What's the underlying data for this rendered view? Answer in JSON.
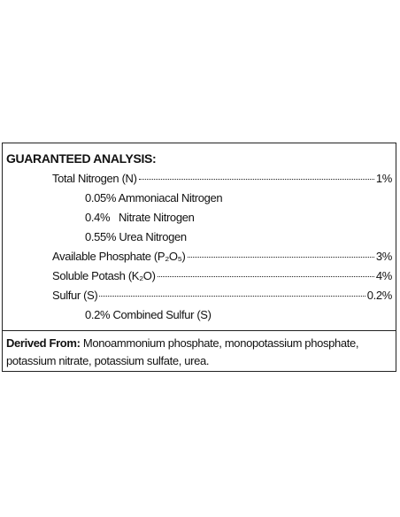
{
  "title": "GUARANTEED ANALYSIS:",
  "rows": [
    {
      "label": "Total Nitrogen (N)",
      "value": "1%"
    },
    {
      "label": "0.05% Ammoniacal Nitrogen"
    },
    {
      "label": "0.4%   Nitrate Nitrogen"
    },
    {
      "label": "0.55% Urea Nitrogen"
    },
    {
      "label": "Available Phosphate (P₂O₅)",
      "value": "3%"
    },
    {
      "label": "Soluble Potash (K₂O)",
      "value": "4%"
    },
    {
      "label": "Sulfur (S)",
      "value": "0.2%"
    },
    {
      "label": "0.2% Combined Sulfur (S)"
    }
  ],
  "derived": {
    "label": "Derived From:",
    "text": "Monoammonium phosphate, monopotassium phosphate, potassium nitrate, potassium sulfate, urea."
  }
}
